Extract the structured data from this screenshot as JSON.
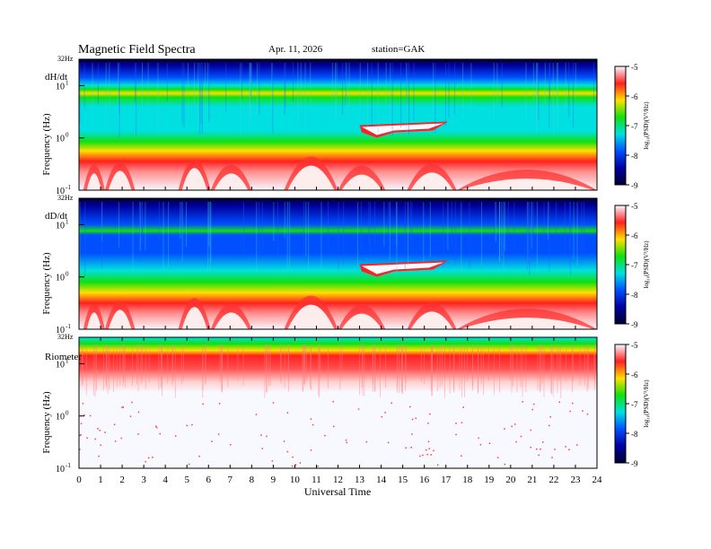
{
  "header": {
    "title": "Magnetic  Field  Spectra",
    "date": "Apr. 11, 2026",
    "station": "station=GAK"
  },
  "colors": {
    "colormap": [
      "#f8f8ff",
      "#ff2020",
      "#ffe000",
      "#10e010",
      "#00e0e0",
      "#0050ff",
      "#0000a0",
      "#000030"
    ]
  },
  "chart_data": [
    {
      "type": "heatmap",
      "panel_label": "dH/dt",
      "ylabel": "Frequency  (Hz)",
      "y_scale": "log",
      "ylim": [
        0.1,
        32
      ],
      "y_ticks": [
        {
          "base": "10",
          "exp": "-1"
        },
        {
          "base": "10",
          "exp": "0"
        },
        {
          "base": "10",
          "exp": "1"
        }
      ],
      "y_top_label": "32Hz",
      "colorbar": {
        "ticks": [
          "-5",
          "-6",
          "-7",
          "-8",
          "-9"
        ],
        "label": "log₁₀(PSD)(V²/Hz)",
        "range": [
          -9,
          -5
        ]
      }
    },
    {
      "type": "heatmap",
      "panel_label": "dD/dt",
      "ylabel": "Frequency  (Hz)",
      "y_scale": "log",
      "ylim": [
        0.1,
        32
      ],
      "y_ticks": [
        {
          "base": "10",
          "exp": "-1"
        },
        {
          "base": "10",
          "exp": "0"
        },
        {
          "base": "10",
          "exp": "1"
        }
      ],
      "y_top_label": "32Hz",
      "colorbar": {
        "ticks": [
          "-5",
          "-6",
          "-7",
          "-8",
          "-9"
        ],
        "label": "log₁₀(PSD)(V²/Hz)",
        "range": [
          -9,
          -5
        ]
      }
    },
    {
      "type": "heatmap",
      "panel_label": "Riometer",
      "ylabel": "Frequency  (Hz)",
      "y_scale": "log",
      "ylim": [
        0.1,
        32
      ],
      "y_ticks": [
        {
          "base": "10",
          "exp": "-1"
        },
        {
          "base": "10",
          "exp": "0"
        },
        {
          "base": "10",
          "exp": "1"
        }
      ],
      "y_top_label": "32Hz",
      "colorbar": {
        "ticks": [
          "-5",
          "-6",
          "-7",
          "-8",
          "-9"
        ],
        "label": "log₁₀(PSD)(V²/Hz)",
        "range": [
          -9,
          -5
        ]
      }
    }
  ],
  "x_axis": {
    "label": "Universal  Time",
    "range": [
      0,
      24
    ],
    "ticks": [
      "0",
      "1",
      "2",
      "3",
      "4",
      "5",
      "6",
      "7",
      "8",
      "9",
      "10",
      "11",
      "12",
      "13",
      "14",
      "15",
      "16",
      "17",
      "18",
      "19",
      "20",
      "21",
      "22",
      "23",
      "24"
    ]
  }
}
